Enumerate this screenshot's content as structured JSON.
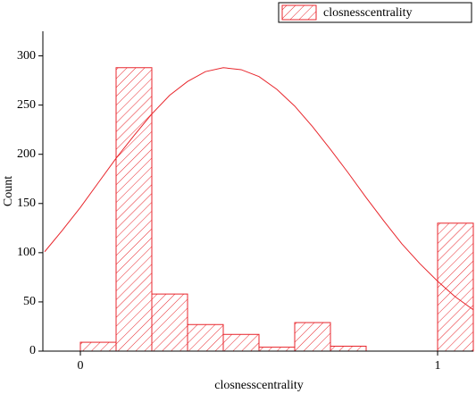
{
  "chart_data": {
    "type": "histogram",
    "legend_label": "closnesscentrality",
    "x_label": "closnesscentrality",
    "y_label": "Count",
    "color": "#e8262c",
    "bins": [
      0,
      0.1,
      0.2,
      0.3,
      0.4,
      0.5,
      0.6,
      0.7,
      0.8,
      0.9,
      1.0,
      1.1
    ],
    "counts": [
      9,
      288,
      58,
      27,
      17,
      4,
      29,
      5,
      0,
      0,
      130
    ],
    "curve": {
      "x": [
        -0.1,
        -0.05,
        0,
        0.05,
        0.1,
        0.15,
        0.2,
        0.25,
        0.3,
        0.35,
        0.4,
        0.45,
        0.5,
        0.55,
        0.6,
        0.65,
        0.7,
        0.75,
        0.8,
        0.85,
        0.9,
        0.95,
        1.0,
        1.05,
        1.1
      ],
      "y": [
        101,
        123,
        146,
        171,
        196,
        219,
        241,
        260,
        274,
        284,
        288,
        286,
        279,
        266,
        249,
        228,
        205,
        181,
        156,
        132,
        109,
        89,
        71,
        55,
        42
      ]
    },
    "xlim": [
      -0.105,
      1.1
    ],
    "ylim": [
      0,
      325
    ],
    "xticks": [
      0,
      1
    ],
    "yticks": [
      0,
      50,
      100,
      150,
      200,
      250,
      300
    ]
  }
}
